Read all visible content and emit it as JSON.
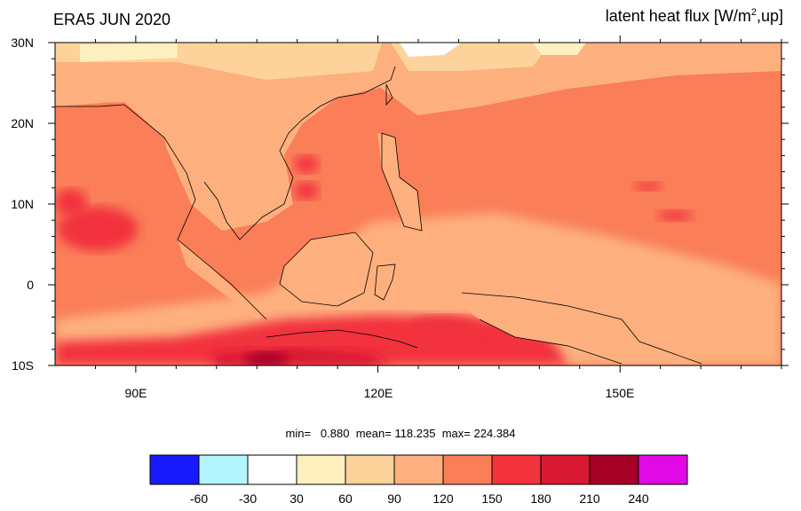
{
  "title_left": "ERA5 JUN 2020",
  "title_right": {
    "prefix": "latent heat flux [W/m",
    "sup": "2",
    "suffix": ",up]"
  },
  "lat_labels": [
    "30N",
    "20N",
    "10N",
    "0",
    "10S"
  ],
  "lon_labels": [
    "90E",
    "120E",
    "150E"
  ],
  "stats": {
    "min_label": "min=",
    "min": "0.880",
    "mean_label": "mean=",
    "mean": "118.235",
    "max_label": "max=",
    "max": "224.384"
  },
  "colorbar": {
    "colors": [
      "#1a1aff",
      "#b3f5ff",
      "#ffffff",
      "#feefbf",
      "#fdd29b",
      "#fdb07e",
      "#fa7e58",
      "#f2333d",
      "#d71932",
      "#a50025",
      "#e10ae6"
    ],
    "labels": [
      "-60",
      "-30",
      "30",
      "60",
      "90",
      "120",
      "150",
      "180",
      "210",
      "240"
    ]
  },
  "map": {
    "extent": {
      "lon_min": 80,
      "lon_max": 170,
      "lat_min": -10,
      "lat_max": 30
    }
  }
}
